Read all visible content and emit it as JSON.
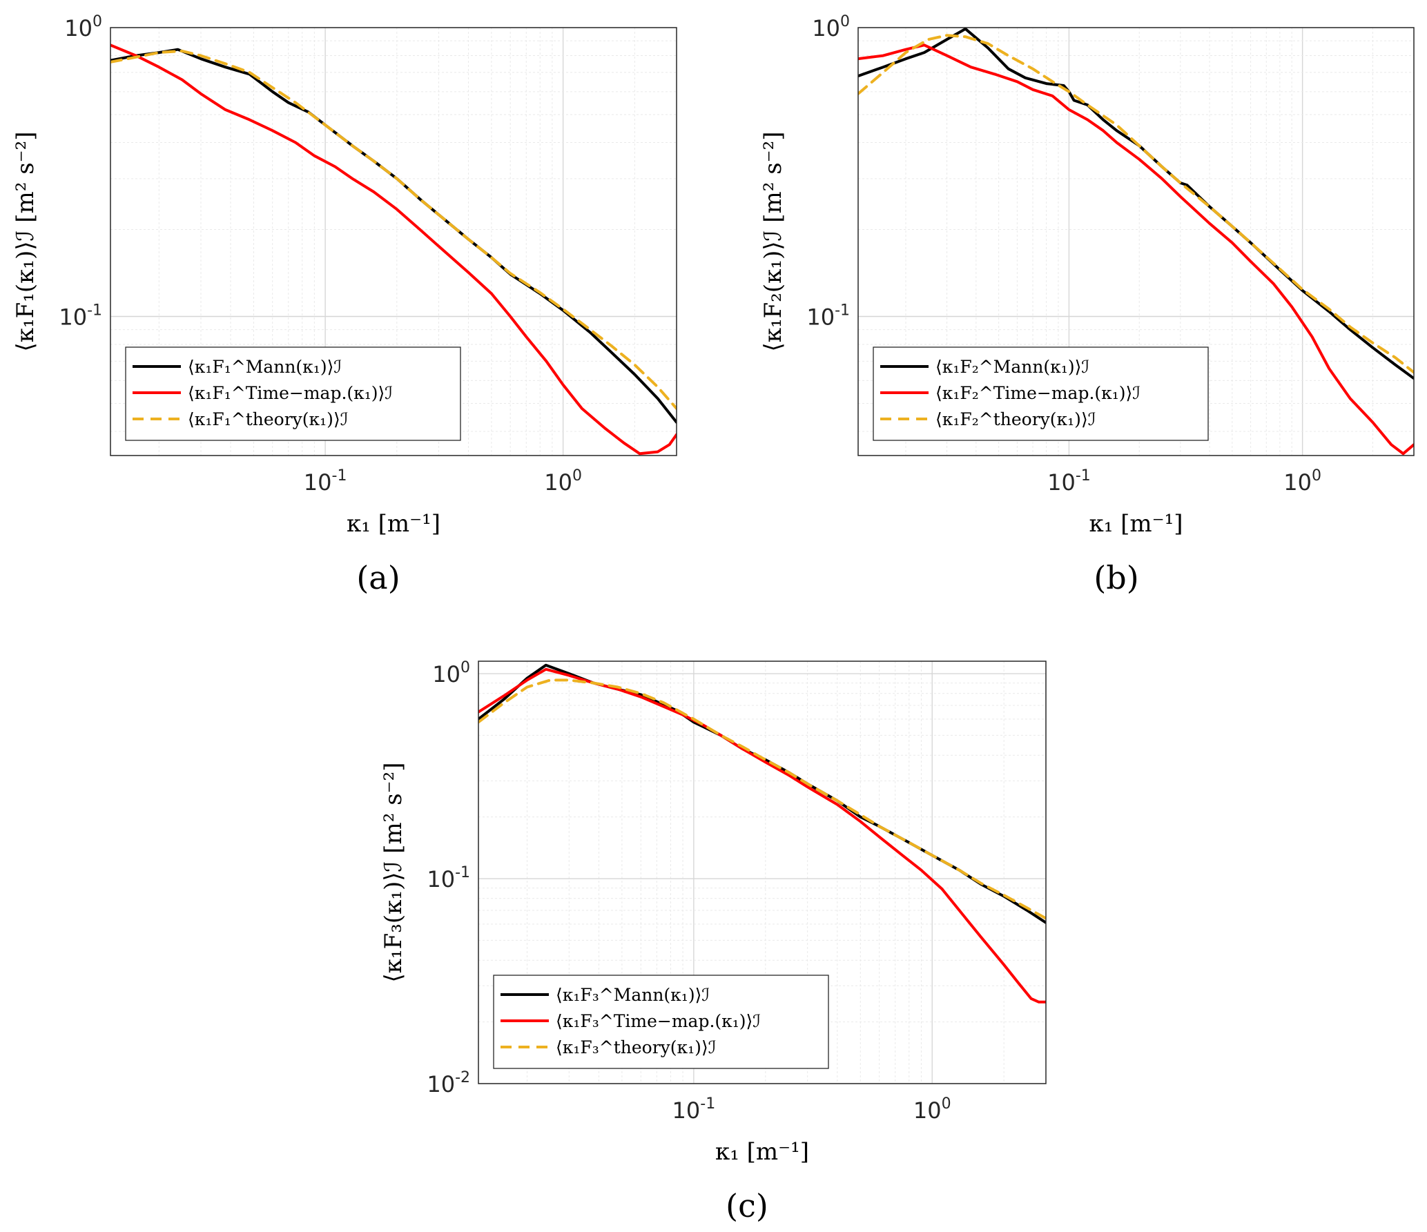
{
  "figure": {
    "panel_labels": [
      "(a)",
      "(b)",
      "(c)"
    ]
  },
  "chart_data": [
    {
      "type": "line",
      "panel": "(a)",
      "xscale": "log",
      "yscale": "log",
      "xlim": [
        0.0125,
        3.0
      ],
      "ylim": [
        0.033,
        1.0
      ],
      "xticks": [
        {
          "value": 0.1,
          "mantissa": "10",
          "exponent": "-1"
        },
        {
          "value": 1.0,
          "mantissa": "10",
          "exponent": "0"
        }
      ],
      "yticks": [
        {
          "value": 0.1,
          "mantissa": "10",
          "exponent": "-1"
        },
        {
          "value": 1.0,
          "mantissa": "10",
          "exponent": "0"
        }
      ],
      "xlabel": "κ₁ [m⁻¹]",
      "ylabel": "⟨κ₁F₁(κ₁)⟩ℐ [m² s⁻²]",
      "legend_position": "lower-left",
      "grid": true,
      "series": [
        {
          "name": "⟨κ₁F₁^Mann(κ₁)⟩ℐ",
          "color": "#000000",
          "dash": "solid",
          "x": [
            0.0125,
            0.016,
            0.02,
            0.024,
            0.03,
            0.038,
            0.048,
            0.06,
            0.07,
            0.085,
            0.1,
            0.13,
            0.16,
            0.2,
            0.25,
            0.3,
            0.4,
            0.5,
            0.6,
            0.8,
            1.0,
            1.3,
            1.6,
            2.0,
            2.5,
            3.0
          ],
          "y": [
            0.77,
            0.8,
            0.82,
            0.84,
            0.78,
            0.73,
            0.69,
            0.6,
            0.55,
            0.51,
            0.46,
            0.39,
            0.345,
            0.3,
            0.255,
            0.225,
            0.185,
            0.16,
            0.14,
            0.12,
            0.105,
            0.088,
            0.075,
            0.063,
            0.052,
            0.043
          ]
        },
        {
          "name": "⟨κ₁F₁^Time−map.(κ₁)⟩ℐ",
          "color": "#ff0000",
          "dash": "solid",
          "x": [
            0.0125,
            0.016,
            0.02,
            0.025,
            0.03,
            0.038,
            0.048,
            0.06,
            0.075,
            0.09,
            0.11,
            0.13,
            0.16,
            0.2,
            0.25,
            0.3,
            0.4,
            0.5,
            0.6,
            0.7,
            0.85,
            1.0,
            1.2,
            1.5,
            1.8,
            2.1,
            2.5,
            2.8,
            3.0
          ],
          "y": [
            0.87,
            0.8,
            0.73,
            0.66,
            0.59,
            0.52,
            0.48,
            0.44,
            0.4,
            0.36,
            0.33,
            0.3,
            0.27,
            0.235,
            0.2,
            0.175,
            0.142,
            0.12,
            0.1,
            0.085,
            0.07,
            0.058,
            0.048,
            0.041,
            0.0365,
            0.0335,
            0.034,
            0.036,
            0.039
          ]
        },
        {
          "name": "⟨κ₁F₁^theory(κ₁)⟩ℐ",
          "color": "#edb120",
          "dash": "dashed",
          "x": [
            0.0125,
            0.016,
            0.02,
            0.025,
            0.03,
            0.038,
            0.048,
            0.06,
            0.075,
            0.1,
            0.13,
            0.16,
            0.2,
            0.25,
            0.3,
            0.4,
            0.5,
            0.6,
            0.8,
            1.0,
            1.3,
            1.6,
            2.0,
            2.5,
            3.0
          ],
          "y": [
            0.76,
            0.79,
            0.82,
            0.83,
            0.8,
            0.75,
            0.7,
            0.62,
            0.55,
            0.46,
            0.39,
            0.345,
            0.3,
            0.255,
            0.225,
            0.185,
            0.16,
            0.141,
            0.121,
            0.106,
            0.09,
            0.079,
            0.068,
            0.057,
            0.048
          ]
        }
      ]
    },
    {
      "type": "line",
      "panel": "(b)",
      "xscale": "log",
      "yscale": "log",
      "xlim": [
        0.0125,
        3.0
      ],
      "ylim": [
        0.033,
        1.0
      ],
      "xticks": [
        {
          "value": 0.1,
          "mantissa": "10",
          "exponent": "-1"
        },
        {
          "value": 1.0,
          "mantissa": "10",
          "exponent": "0"
        }
      ],
      "yticks": [
        {
          "value": 0.1,
          "mantissa": "10",
          "exponent": "-1"
        },
        {
          "value": 1.0,
          "mantissa": "10",
          "exponent": "0"
        }
      ],
      "xlabel": "κ₁ [m⁻¹]",
      "ylabel": "⟨κ₁F₂(κ₁)⟩ℐ [m² s⁻²]",
      "legend_position": "lower-left",
      "grid": true,
      "series": [
        {
          "name": "⟨κ₁F₂^Mann(κ₁)⟩ℐ",
          "color": "#000000",
          "dash": "solid",
          "x": [
            0.0125,
            0.016,
            0.02,
            0.024,
            0.03,
            0.036,
            0.045,
            0.055,
            0.065,
            0.08,
            0.095,
            0.1,
            0.105,
            0.12,
            0.14,
            0.16,
            0.2,
            0.25,
            0.3,
            0.32,
            0.4,
            0.5,
            0.6,
            0.8,
            1.0,
            1.3,
            1.6,
            2.0,
            2.5,
            3.0
          ],
          "y": [
            0.68,
            0.73,
            0.78,
            0.82,
            0.91,
            0.99,
            0.85,
            0.72,
            0.67,
            0.64,
            0.63,
            0.6,
            0.56,
            0.54,
            0.48,
            0.44,
            0.39,
            0.33,
            0.29,
            0.285,
            0.24,
            0.205,
            0.18,
            0.145,
            0.123,
            0.104,
            0.09,
            0.078,
            0.068,
            0.061
          ]
        },
        {
          "name": "⟨κ₁F₂^Time−map.(κ₁)⟩ℐ",
          "color": "#ff0000",
          "dash": "solid",
          "x": [
            0.0125,
            0.016,
            0.02,
            0.024,
            0.03,
            0.038,
            0.048,
            0.06,
            0.07,
            0.085,
            0.1,
            0.12,
            0.14,
            0.16,
            0.2,
            0.25,
            0.3,
            0.4,
            0.5,
            0.6,
            0.75,
            0.9,
            1.1,
            1.3,
            1.6,
            2.0,
            2.4,
            2.7,
            3.0
          ],
          "y": [
            0.78,
            0.8,
            0.84,
            0.87,
            0.8,
            0.73,
            0.69,
            0.65,
            0.61,
            0.58,
            0.52,
            0.48,
            0.44,
            0.4,
            0.35,
            0.3,
            0.26,
            0.21,
            0.18,
            0.155,
            0.13,
            0.108,
            0.085,
            0.066,
            0.052,
            0.043,
            0.036,
            0.0335,
            0.036
          ]
        },
        {
          "name": "⟨κ₁F₂^theory(κ₁)⟩ℐ",
          "color": "#edb120",
          "dash": "dashed",
          "x": [
            0.0125,
            0.016,
            0.02,
            0.025,
            0.03,
            0.036,
            0.045,
            0.055,
            0.07,
            0.085,
            0.1,
            0.12,
            0.16,
            0.2,
            0.25,
            0.3,
            0.4,
            0.5,
            0.6,
            0.8,
            1.0,
            1.3,
            1.6,
            2.0,
            2.5,
            3.0
          ],
          "y": [
            0.59,
            0.7,
            0.82,
            0.91,
            0.94,
            0.93,
            0.88,
            0.8,
            0.72,
            0.65,
            0.6,
            0.54,
            0.46,
            0.39,
            0.33,
            0.29,
            0.24,
            0.205,
            0.18,
            0.146,
            0.124,
            0.106,
            0.092,
            0.081,
            0.072,
            0.064
          ]
        }
      ]
    },
    {
      "type": "line",
      "panel": "(c)",
      "xscale": "log",
      "yscale": "log",
      "xlim": [
        0.0125,
        3.0
      ],
      "ylim": [
        0.01,
        1.15
      ],
      "xticks": [
        {
          "value": 0.1,
          "mantissa": "10",
          "exponent": "-1"
        },
        {
          "value": 1.0,
          "mantissa": "10",
          "exponent": "0"
        }
      ],
      "yticks": [
        {
          "value": 0.01,
          "mantissa": "10",
          "exponent": "-2"
        },
        {
          "value": 0.1,
          "mantissa": "10",
          "exponent": "-1"
        },
        {
          "value": 1.0,
          "mantissa": "10",
          "exponent": "0"
        }
      ],
      "xlabel": "κ₁ [m⁻¹]",
      "ylabel": "⟨κ₁F₃(κ₁)⟩ℐ [m² s⁻²]",
      "legend_position": "lower-left",
      "grid": true,
      "series": [
        {
          "name": "⟨κ₁F₃^Mann(κ₁)⟩ℐ",
          "color": "#000000",
          "dash": "solid",
          "x": [
            0.0125,
            0.016,
            0.02,
            0.024,
            0.03,
            0.038,
            0.048,
            0.06,
            0.07,
            0.085,
            0.1,
            0.13,
            0.16,
            0.2,
            0.25,
            0.3,
            0.4,
            0.5,
            0.6,
            0.8,
            1.0,
            1.3,
            1.6,
            2.0,
            2.5,
            3.0
          ],
          "y": [
            0.6,
            0.75,
            0.95,
            1.1,
            1.0,
            0.9,
            0.84,
            0.79,
            0.73,
            0.66,
            0.58,
            0.5,
            0.43,
            0.38,
            0.33,
            0.29,
            0.24,
            0.2,
            0.18,
            0.15,
            0.13,
            0.11,
            0.094,
            0.082,
            0.07,
            0.061
          ]
        },
        {
          "name": "⟨κ₁F₃^Time−map.(κ₁)⟩ℐ",
          "color": "#ff0000",
          "dash": "solid",
          "x": [
            0.0125,
            0.016,
            0.02,
            0.024,
            0.03,
            0.038,
            0.048,
            0.06,
            0.075,
            0.09,
            0.11,
            0.13,
            0.16,
            0.2,
            0.25,
            0.3,
            0.4,
            0.5,
            0.6,
            0.75,
            0.9,
            1.1,
            1.3,
            1.6,
            2.0,
            2.3,
            2.6,
            2.8,
            3.0
          ],
          "y": [
            0.65,
            0.78,
            0.93,
            1.05,
            0.98,
            0.9,
            0.84,
            0.77,
            0.69,
            0.63,
            0.56,
            0.5,
            0.43,
            0.37,
            0.32,
            0.28,
            0.23,
            0.19,
            0.16,
            0.13,
            0.11,
            0.089,
            0.07,
            0.052,
            0.038,
            0.031,
            0.026,
            0.025,
            0.025
          ]
        },
        {
          "name": "⟨κ₁F₃^theory(κ₁)⟩ℐ",
          "color": "#edb120",
          "dash": "dashed",
          "x": [
            0.0125,
            0.016,
            0.02,
            0.025,
            0.03,
            0.038,
            0.048,
            0.06,
            0.075,
            0.1,
            0.13,
            0.16,
            0.2,
            0.25,
            0.3,
            0.4,
            0.5,
            0.6,
            0.8,
            1.0,
            1.3,
            1.6,
            2.0,
            2.5,
            3.0
          ],
          "y": [
            0.58,
            0.72,
            0.86,
            0.93,
            0.93,
            0.9,
            0.86,
            0.8,
            0.72,
            0.6,
            0.5,
            0.44,
            0.38,
            0.33,
            0.29,
            0.24,
            0.205,
            0.18,
            0.15,
            0.13,
            0.11,
            0.095,
            0.083,
            0.072,
            0.064
          ]
        }
      ]
    }
  ]
}
